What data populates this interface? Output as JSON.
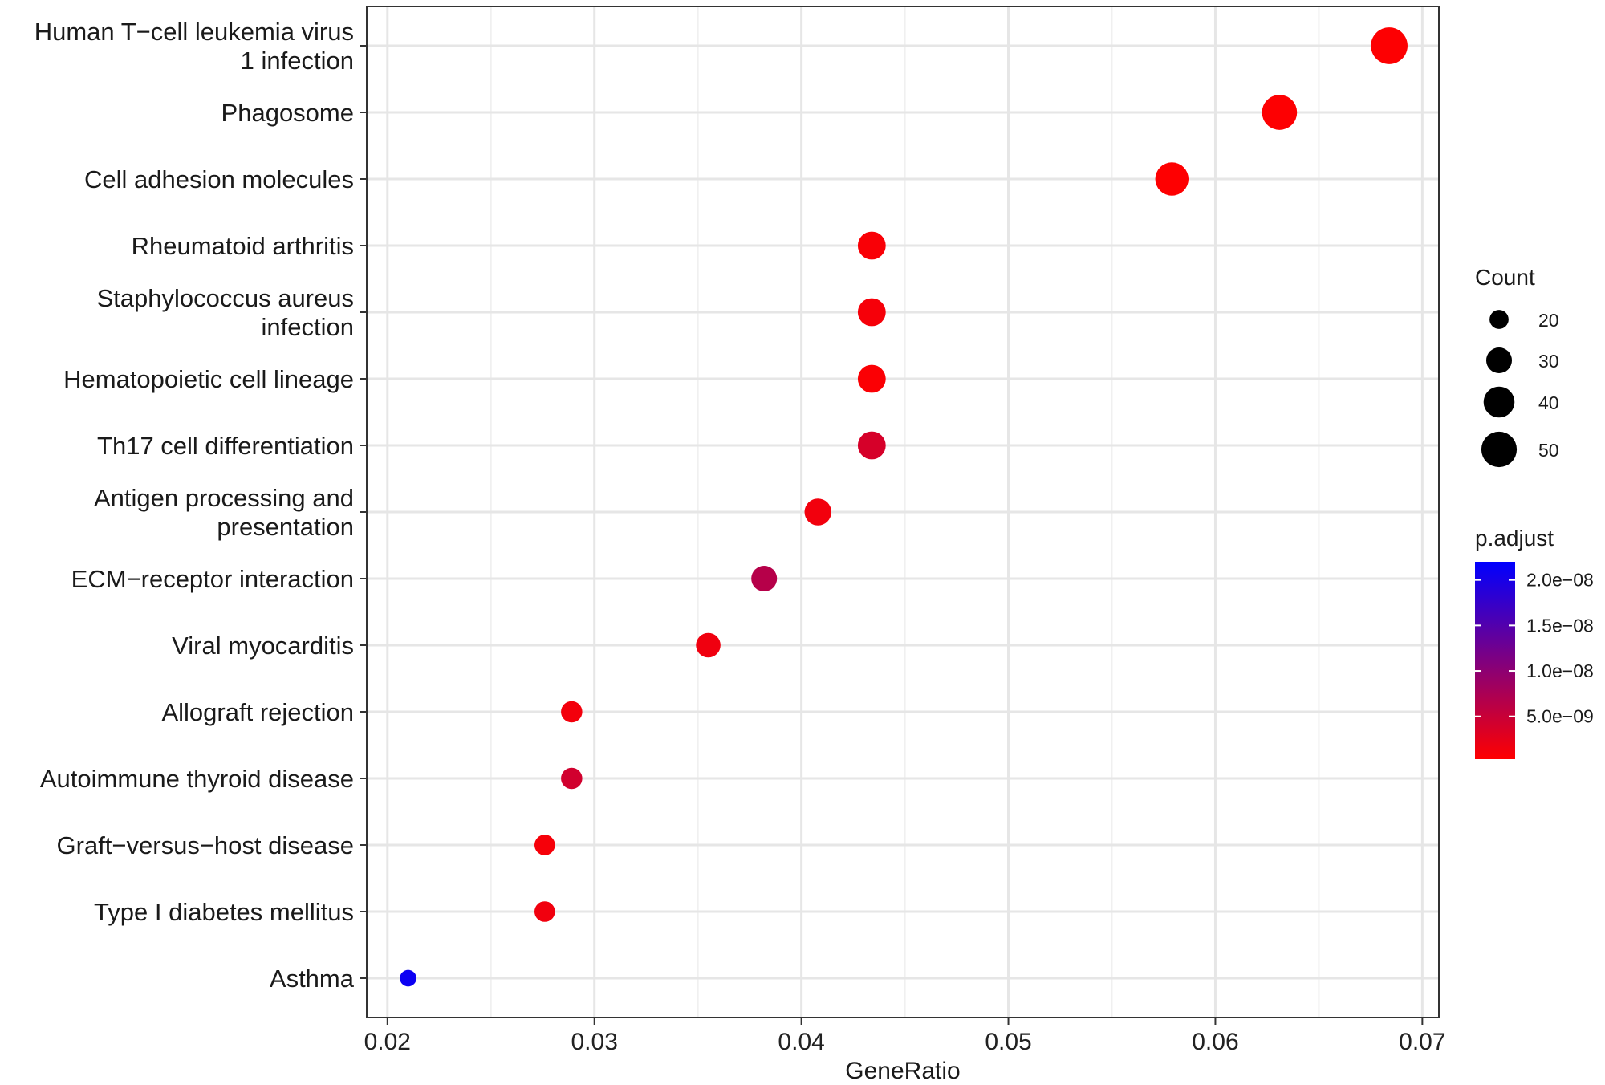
{
  "chart_data": {
    "type": "scatter",
    "xlabel": "GeneRatio",
    "ylabel": "",
    "xlim": [
      0.019,
      0.0708
    ],
    "x_ticks": [
      0.02,
      0.03,
      0.04,
      0.05,
      0.06,
      0.07
    ],
    "x_tick_labels": [
      "0.02",
      "0.03",
      "0.04",
      "0.05",
      "0.06",
      "0.07"
    ],
    "grid": true,
    "legend_position": "right",
    "categories": [
      [
        "Human T−cell leukemia virus",
        "1 infection"
      ],
      [
        "Phagosome"
      ],
      [
        "Cell adhesion molecules"
      ],
      [
        "Rheumatoid arthritis"
      ],
      [
        "Staphylococcus aureus",
        "infection"
      ],
      [
        "Hematopoietic cell lineage"
      ],
      [
        "Th17 cell differentiation"
      ],
      [
        "Antigen processing and",
        "presentation"
      ],
      [
        "ECM−receptor interaction"
      ],
      [
        "Viral myocarditis"
      ],
      [
        "Allograft rejection"
      ],
      [
        "Autoimmune thyroid disease"
      ],
      [
        "Graft−versus−host disease"
      ],
      [
        "Type I diabetes mellitus"
      ],
      [
        "Asthma"
      ]
    ],
    "points": [
      {
        "gene_ratio": 0.0684,
        "count": 53,
        "p_adjust": 5e-10
      },
      {
        "gene_ratio": 0.0631,
        "count": 49,
        "p_adjust": 5e-10
      },
      {
        "gene_ratio": 0.0579,
        "count": 45,
        "p_adjust": 4e-10
      },
      {
        "gene_ratio": 0.0434,
        "count": 34,
        "p_adjust": 8e-10
      },
      {
        "gene_ratio": 0.0434,
        "count": 34,
        "p_adjust": 1.1e-09
      },
      {
        "gene_ratio": 0.0434,
        "count": 34,
        "p_adjust": 6e-10
      },
      {
        "gene_ratio": 0.0434,
        "count": 34,
        "p_adjust": 3.8e-09
      },
      {
        "gene_ratio": 0.0408,
        "count": 32,
        "p_adjust": 1.4e-09
      },
      {
        "gene_ratio": 0.0382,
        "count": 30,
        "p_adjust": 6.5e-09
      },
      {
        "gene_ratio": 0.0355,
        "count": 28,
        "p_adjust": 1.6e-09
      },
      {
        "gene_ratio": 0.0289,
        "count": 23,
        "p_adjust": 1.3e-09
      },
      {
        "gene_ratio": 0.0289,
        "count": 23,
        "p_adjust": 4.2e-09
      },
      {
        "gene_ratio": 0.0276,
        "count": 22,
        "p_adjust": 1.1e-09
      },
      {
        "gene_ratio": 0.0276,
        "count": 22,
        "p_adjust": 1.5e-09
      },
      {
        "gene_ratio": 0.021,
        "count": 17,
        "p_adjust": 2.1e-08
      }
    ],
    "legend_count": {
      "title": "Count",
      "values": [
        20,
        30,
        40,
        50
      ],
      "labels": [
        "20",
        "30",
        "40",
        "50"
      ]
    },
    "legend_color": {
      "title": "p.adjust",
      "range": [
        3e-10,
        2.2e-08
      ],
      "low_color": "#FF0000",
      "high_color": "#0000FF",
      "ticks": [
        2e-08,
        1.5e-08,
        1e-08,
        5e-09
      ],
      "labels": [
        "2.0e−08",
        "1.5e−08",
        "1.0e−08",
        "5.0e−09"
      ]
    }
  }
}
